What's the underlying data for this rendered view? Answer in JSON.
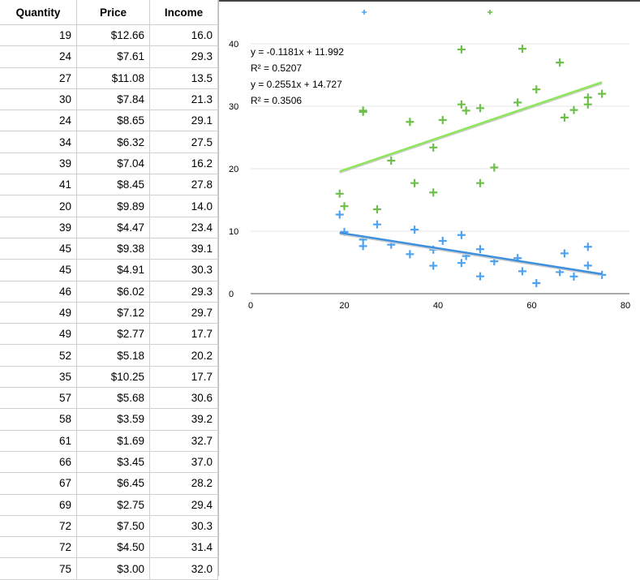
{
  "table": {
    "headers": [
      "Quantity",
      "Price",
      "Income"
    ],
    "rows": [
      [
        "19",
        "$12.66",
        "16.0"
      ],
      [
        "24",
        "$7.61",
        "29.3"
      ],
      [
        "27",
        "$11.08",
        "13.5"
      ],
      [
        "30",
        "$7.84",
        "21.3"
      ],
      [
        "24",
        "$8.65",
        "29.1"
      ],
      [
        "34",
        "$6.32",
        "27.5"
      ],
      [
        "39",
        "$7.04",
        "16.2"
      ],
      [
        "41",
        "$8.45",
        "27.8"
      ],
      [
        "20",
        "$9.89",
        "14.0"
      ],
      [
        "39",
        "$4.47",
        "23.4"
      ],
      [
        "45",
        "$9.38",
        "39.1"
      ],
      [
        "45",
        "$4.91",
        "30.3"
      ],
      [
        "46",
        "$6.02",
        "29.3"
      ],
      [
        "49",
        "$7.12",
        "29.7"
      ],
      [
        "49",
        "$2.77",
        "17.7"
      ],
      [
        "52",
        "$5.18",
        "20.2"
      ],
      [
        "35",
        "$10.25",
        "17.7"
      ],
      [
        "57",
        "$5.68",
        "30.6"
      ],
      [
        "58",
        "$3.59",
        "39.2"
      ],
      [
        "61",
        "$1.69",
        "32.7"
      ],
      [
        "66",
        "$3.45",
        "37.0"
      ],
      [
        "67",
        "$6.45",
        "28.2"
      ],
      [
        "69",
        "$2.75",
        "29.4"
      ],
      [
        "72",
        "$7.50",
        "30.3"
      ],
      [
        "72",
        "$4.50",
        "31.4"
      ],
      [
        "75",
        "$3.00",
        "32.0"
      ]
    ]
  },
  "chart_data": {
    "type": "scatter",
    "xlim": [
      0,
      80
    ],
    "ylim": [
      0,
      40
    ],
    "xticks": [
      "0",
      "20",
      "40",
      "60",
      "80"
    ],
    "yticks": [
      "0",
      "10",
      "20",
      "30",
      "40"
    ],
    "grid": true,
    "legend": "top",
    "x": [
      19,
      24,
      27,
      30,
      24,
      34,
      39,
      41,
      20,
      39,
      45,
      45,
      46,
      49,
      49,
      52,
      35,
      57,
      58,
      61,
      66,
      67,
      69,
      72,
      72,
      75
    ],
    "series": [
      {
        "key": "price",
        "color": "#4da3f0",
        "line_color": "#3d8fe0",
        "values": [
          12.66,
          7.61,
          11.08,
          7.84,
          8.65,
          6.32,
          7.04,
          8.45,
          9.89,
          4.47,
          9.38,
          4.91,
          6.02,
          7.12,
          2.77,
          5.18,
          10.25,
          5.68,
          3.59,
          1.69,
          3.45,
          6.45,
          2.75,
          7.5,
          4.5,
          3.0
        ],
        "trend": {
          "slope": -0.1181,
          "intercept": 11.992,
          "equation": "y = -0.1181x + 11.992",
          "r2": "R² = 0.5207"
        }
      },
      {
        "key": "income",
        "color": "#6cc04a",
        "line_color": "#8ee65a",
        "values": [
          16.0,
          29.3,
          13.5,
          21.3,
          29.1,
          27.5,
          16.2,
          27.8,
          14.0,
          23.4,
          39.1,
          30.3,
          29.3,
          29.7,
          17.7,
          20.2,
          17.7,
          30.6,
          39.2,
          32.7,
          37.0,
          28.2,
          29.4,
          30.3,
          31.4,
          32.0
        ],
        "trend": {
          "slope": 0.2551,
          "intercept": 14.727,
          "equation": "y = 0.2551x + 14.727",
          "r2": "R² = 0.3506"
        }
      }
    ]
  }
}
